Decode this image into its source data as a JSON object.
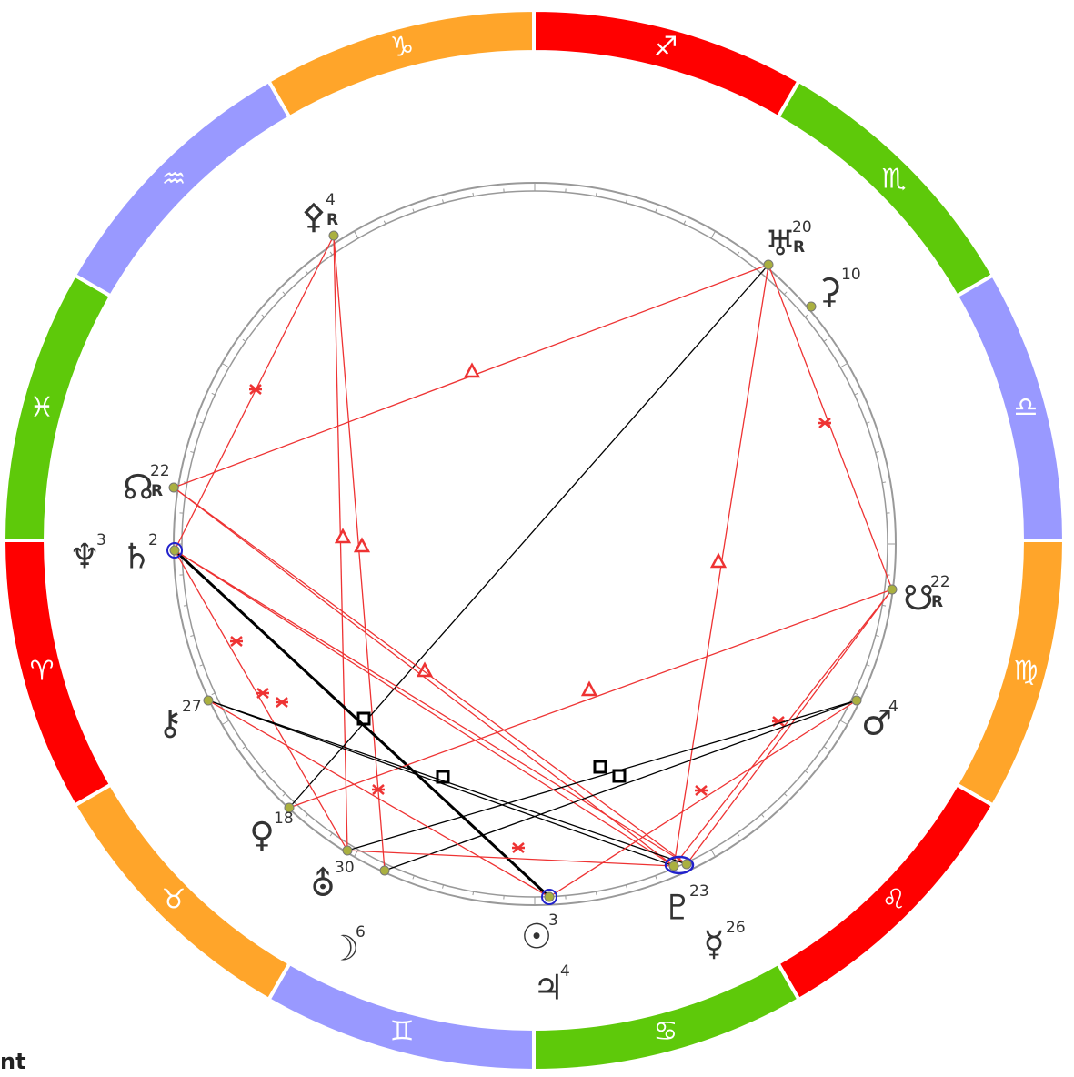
{
  "signs": [
    {
      "glyph": "♍",
      "color": "#ffa52a"
    },
    {
      "glyph": "♌",
      "color": "#ff0000"
    },
    {
      "glyph": "♋",
      "color": "#5ec90a"
    },
    {
      "glyph": "♊",
      "color": "#9999ff"
    },
    {
      "glyph": "♉",
      "color": "#ffa52a"
    },
    {
      "glyph": "♈",
      "color": "#ff0000"
    },
    {
      "glyph": "♓",
      "color": "#5ec90a"
    },
    {
      "glyph": "♒",
      "color": "#9999ff"
    },
    {
      "glyph": "♑",
      "color": "#ffa52a"
    },
    {
      "glyph": "♐",
      "color": "#ff0000"
    },
    {
      "glyph": "♏",
      "color": "#5ec90a"
    },
    {
      "glyph": "♎",
      "color": "#9999ff"
    }
  ],
  "planets": [
    {
      "glyph": "⚴",
      "degree": 4,
      "retro": "R"
    },
    {
      "glyph": "♅",
      "degree": 20,
      "retro": "R"
    },
    {
      "glyph": "⚳",
      "degree": 10
    },
    {
      "glyph": "☊",
      "degree": 22,
      "retro": "R"
    },
    {
      "glyph": "♆",
      "degree": 3
    },
    {
      "glyph": "♄",
      "degree": 2
    },
    {
      "glyph": "☋",
      "degree": 22,
      "retro": "R"
    },
    {
      "glyph": "⚷",
      "degree": 27
    },
    {
      "glyph": "♂",
      "degree": 4
    },
    {
      "glyph": "♀",
      "degree": 18
    },
    {
      "glyph": "⛢",
      "degree": 30
    },
    {
      "glyph": "☽",
      "degree": 6
    },
    {
      "glyph": "☉",
      "degree": 3
    },
    {
      "glyph": "♃",
      "degree": 4
    },
    {
      "glyph": "♇",
      "degree": 23
    },
    {
      "glyph": "☿",
      "degree": 26
    }
  ],
  "footer": "nt"
}
